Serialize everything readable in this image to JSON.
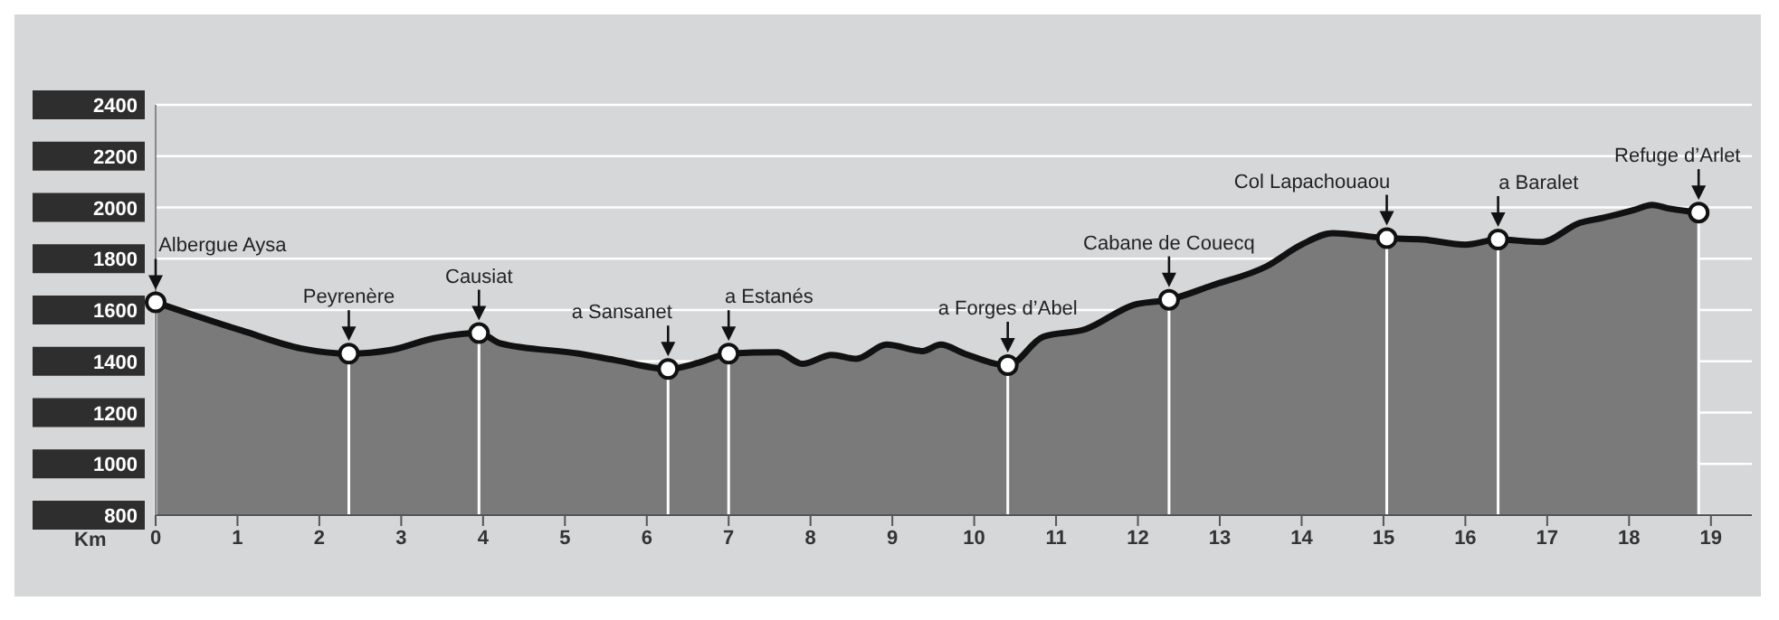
{
  "chart_data": {
    "type": "area",
    "xlabel": "Km",
    "color": "#7a7a7a",
    "x": [
      0,
      1.05,
      1.78,
      2.36,
      2.89,
      3.4,
      3.95,
      4.21,
      5.17,
      5.61,
      6.26,
      6.64,
      7.0,
      7.6,
      7.9,
      8.26,
      8.56,
      8.93,
      9.37,
      9.59,
      9.88,
      10.41,
      10.84,
      11.36,
      11.95,
      12.38,
      12.9,
      13.57,
      14.0,
      14.38,
      15.04,
      15.48,
      16.0,
      16.4,
      16.92,
      17.4,
      17.69,
      18.06,
      18.28,
      18.5,
      18.85
    ],
    "values": [
      1630,
      1520,
      1450,
      1430,
      1445,
      1490,
      1510,
      1470,
      1430,
      1405,
      1370,
      1395,
      1430,
      1435,
      1390,
      1425,
      1410,
      1465,
      1440,
      1465,
      1430,
      1385,
      1495,
      1525,
      1620,
      1640,
      1695,
      1770,
      1855,
      1900,
      1880,
      1875,
      1855,
      1875,
      1865,
      1940,
      1960,
      1990,
      2010,
      1995,
      1980
    ],
    "xlim": [
      0,
      19.5
    ],
    "xticks": [
      0,
      1,
      2,
      3,
      4,
      5,
      6,
      7,
      8,
      9,
      10,
      11,
      12,
      13,
      14,
      15,
      16,
      17,
      18,
      19
    ],
    "ylim": [
      800,
      2400
    ],
    "yticks": [
      800,
      1000,
      1200,
      1400,
      1600,
      1800,
      2000,
      2200,
      2400
    ],
    "grid": "y",
    "ref_lines": [
      {
        "axis": "x",
        "value": 0,
        "color": "#ffffff"
      },
      {
        "axis": "x",
        "value": 2.36,
        "color": "#ffffff"
      },
      {
        "axis": "x",
        "value": 3.95,
        "color": "#ffffff"
      },
      {
        "axis": "x",
        "value": 6.26,
        "color": "#ffffff"
      },
      {
        "axis": "x",
        "value": 7.0,
        "color": "#ffffff"
      },
      {
        "axis": "x",
        "value": 10.41,
        "color": "#ffffff"
      },
      {
        "axis": "x",
        "value": 12.38,
        "color": "#ffffff"
      },
      {
        "axis": "x",
        "value": 15.04,
        "color": "#ffffff"
      },
      {
        "axis": "x",
        "value": 16.4,
        "color": "#ffffff"
      },
      {
        "axis": "x",
        "value": 18.85,
        "color": "#ffffff"
      }
    ],
    "annotations": [
      {
        "text": "Albergue Aysa",
        "x": 0,
        "y": 1630
      },
      {
        "text": "Peyrenère",
        "x": 2.36,
        "y": 1430
      },
      {
        "text": "Causiat",
        "x": 3.95,
        "y": 1510
      },
      {
        "text": "a Sansanet",
        "x": 6.26,
        "y": 1370
      },
      {
        "text": "a Estanés",
        "x": 7.0,
        "y": 1430
      },
      {
        "text": "a Forges d’Abel",
        "x": 10.41,
        "y": 1385
      },
      {
        "text": "Cabane de Couecq",
        "x": 12.38,
        "y": 1640
      },
      {
        "text": "Col Lapachouaou",
        "x": 15.04,
        "y": 1880
      },
      {
        "text": "a Baralet",
        "x": 16.4,
        "y": 1875
      },
      {
        "text": "Refuge d’Arlet",
        "x": 18.85,
        "y": 1980
      }
    ]
  }
}
